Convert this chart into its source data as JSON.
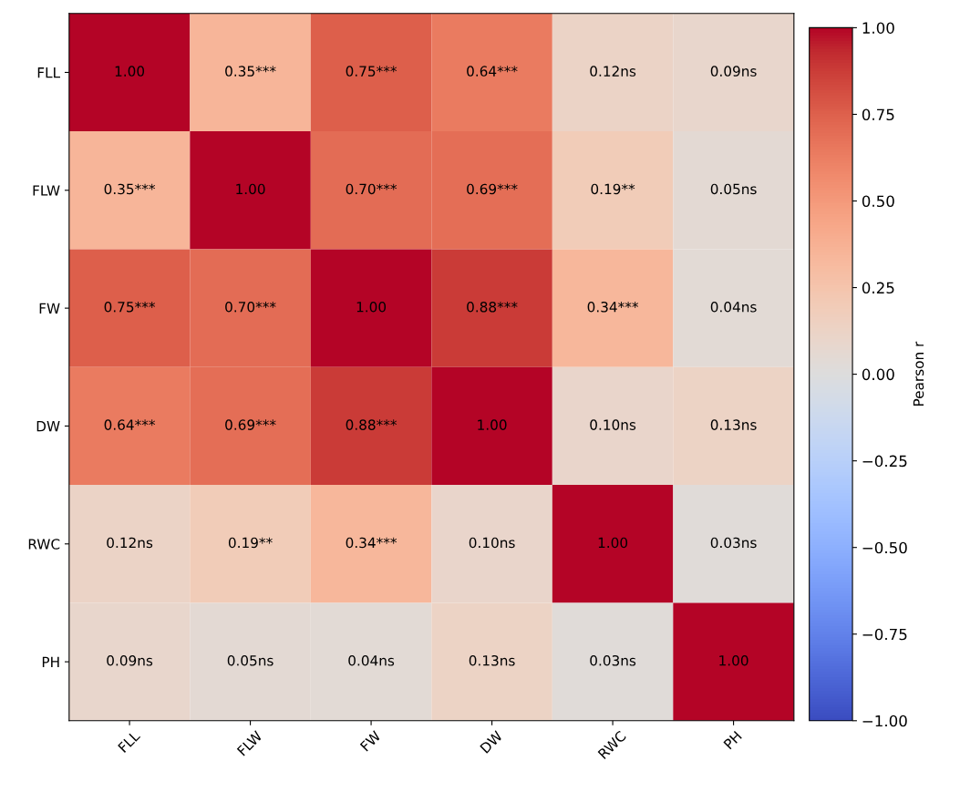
{
  "chart_data": {
    "type": "heatmap",
    "clabel": "Pearson r",
    "categories": [
      "FLL",
      "FLW",
      "FW",
      "DW",
      "RWC",
      "PH"
    ],
    "y_categories": [
      "FLL",
      "FLW",
      "FW",
      "DW",
      "RWC",
      "PH"
    ],
    "cells": [
      [
        1.0,
        0.35,
        0.75,
        0.64,
        0.12,
        0.09
      ],
      [
        0.35,
        1.0,
        0.7,
        0.69,
        0.19,
        0.05
      ],
      [
        0.75,
        0.7,
        1.0,
        0.88,
        0.34,
        0.04
      ],
      [
        0.64,
        0.69,
        0.88,
        1.0,
        0.1,
        0.13
      ],
      [
        0.12,
        0.19,
        0.34,
        0.1,
        1.0,
        0.03
      ],
      [
        0.09,
        0.05,
        0.04,
        0.13,
        0.03,
        1.0
      ]
    ],
    "cell_labels": [
      [
        "1.00",
        "0.35***",
        "0.75***",
        "0.64***",
        "0.12ns",
        "0.09ns"
      ],
      [
        "0.35***",
        "1.00",
        "0.70***",
        "0.69***",
        "0.19**",
        "0.05ns"
      ],
      [
        "0.75***",
        "0.70***",
        "1.00",
        "0.88***",
        "0.34***",
        "0.04ns"
      ],
      [
        "0.64***",
        "0.69***",
        "0.88***",
        "1.00",
        "0.10ns",
        "0.13ns"
      ],
      [
        "0.12ns",
        "0.19**",
        "0.34***",
        "0.10ns",
        "1.00",
        "0.03ns"
      ],
      [
        "0.09ns",
        "0.05ns",
        "0.04ns",
        "0.13ns",
        "0.03ns",
        "1.00"
      ]
    ],
    "clim": [
      -1,
      1
    ],
    "cticks": [
      {
        "value": 1,
        "label": "1.00"
      },
      {
        "value": 0.75,
        "label": "0.75"
      },
      {
        "value": 0.5,
        "label": "0.50"
      },
      {
        "value": 0.25,
        "label": "0.25"
      },
      {
        "value": 0,
        "label": "0.00"
      },
      {
        "value": -0.25,
        "label": "−0.25"
      },
      {
        "value": -0.5,
        "label": "−0.50"
      },
      {
        "value": -0.75,
        "label": "−0.75"
      },
      {
        "value": -1,
        "label": "−1.00"
      }
    ]
  }
}
